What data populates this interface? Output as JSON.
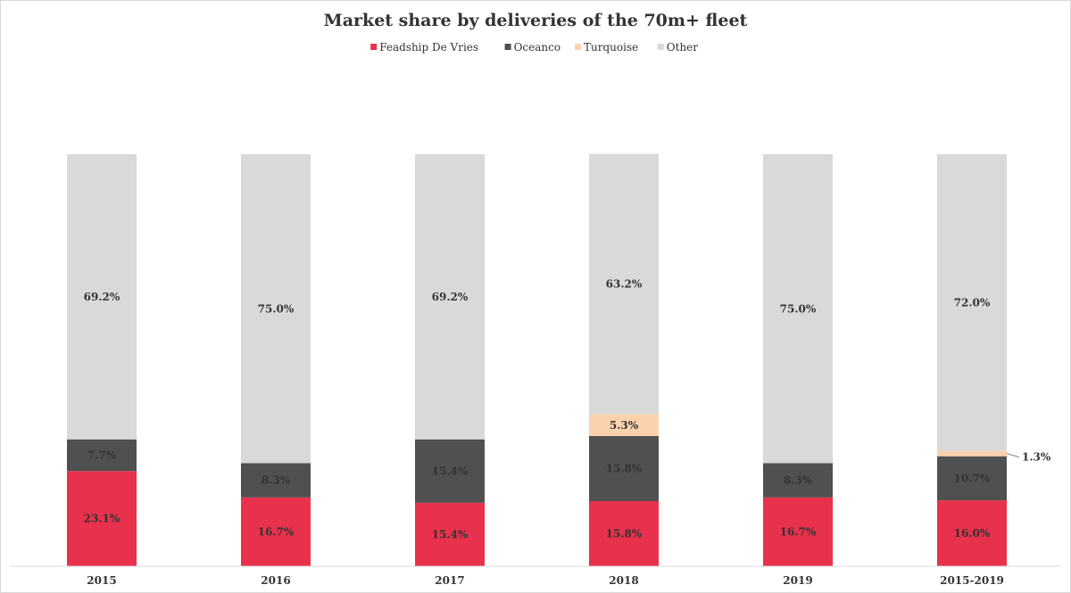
{
  "chart_data": {
    "type": "bar",
    "stacked": true,
    "title": "Market share by deliveries of the 70m+ fleet",
    "xlabel": "",
    "ylabel": "",
    "ylim": [
      0,
      100
    ],
    "grid": false,
    "legend_position": "top",
    "categories": [
      "2015",
      "2016",
      "2017",
      "2018",
      "2019",
      "2015-2019"
    ],
    "series": [
      {
        "name": "Feadship De Vries",
        "color": "#e8314c",
        "values": [
          23.1,
          16.7,
          15.4,
          15.8,
          16.7,
          16.0
        ],
        "labels": [
          "23.1%",
          "16.7%",
          "15.4%",
          "15.8%",
          "16.7%",
          "16.0%"
        ]
      },
      {
        "name": "Oceanco",
        "color": "#505050",
        "values": [
          7.7,
          8.3,
          15.4,
          15.8,
          8.3,
          10.7
        ],
        "labels": [
          "7.7%",
          "8.3%",
          "15.4%",
          "15.8%",
          "8.3%",
          "10.7%"
        ]
      },
      {
        "name": "Turquoise",
        "color": "#fcd2ad",
        "values": [
          0,
          0,
          0,
          5.3,
          0,
          1.3
        ],
        "labels": [
          "",
          "",
          "",
          "5.3%",
          "",
          "1.3%"
        ]
      },
      {
        "name": "Other",
        "color": "#d9d9d9",
        "values": [
          69.2,
          75.0,
          69.2,
          63.2,
          75.0,
          72.0
        ],
        "labels": [
          "69.2%",
          "75.0%",
          "69.2%",
          "63.2%",
          "75.0%",
          "72.0%"
        ]
      }
    ]
  }
}
